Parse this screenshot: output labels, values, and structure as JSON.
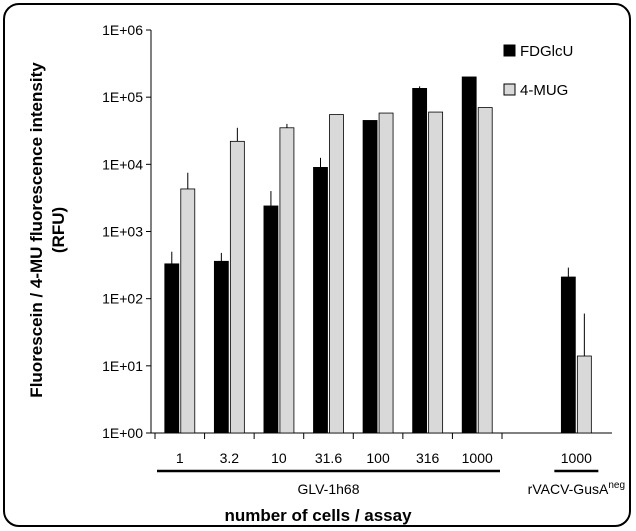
{
  "chart_data": {
    "type": "bar",
    "y_scale": "log",
    "ylim": [
      1,
      1000000
    ],
    "y_ticks": [
      1,
      10,
      100,
      1000,
      10000,
      100000,
      1000000
    ],
    "y_tick_labels": [
      "1E+00",
      "1E+01",
      "1E+02",
      "1E+03",
      "1E+04",
      "1E+05",
      "1E+06"
    ],
    "ylabel_line1": "Fluorescein / 4-MU fluorescence intensity",
    "ylabel_line2": "(RFU)",
    "xlabel": "number of cells / assay",
    "categories": [
      "1",
      "3.2",
      "10",
      "31.6",
      "100",
      "316",
      "1000",
      "",
      "1000"
    ],
    "groups": [
      {
        "label": "GLV-1h68",
        "categories": [
          "1",
          "3.2",
          "10",
          "31.6",
          "100",
          "316",
          "1000"
        ]
      },
      {
        "label_main": "rVACV-GusA",
        "label_sup": "neg",
        "categories": [
          "1000"
        ]
      }
    ],
    "series": [
      {
        "name": "FDGlcU",
        "color": "#000000",
        "values": [
          330,
          360,
          2400,
          9000,
          45000,
          135000,
          200000,
          null,
          210
        ],
        "error_upper": [
          500,
          480,
          4000,
          12500,
          null,
          145000,
          null,
          null,
          290
        ]
      },
      {
        "name": "4-MUG",
        "color": "#d9d9d9",
        "values": [
          4300,
          22000,
          35000,
          55000,
          58000,
          60000,
          70000,
          null,
          14
        ],
        "error_upper": [
          7500,
          35000,
          40000,
          null,
          null,
          null,
          null,
          null,
          60
        ]
      }
    ],
    "legend": {
      "position": "top-right",
      "entries": [
        "FDGlcU",
        "4-MUG"
      ]
    },
    "grid": false
  }
}
